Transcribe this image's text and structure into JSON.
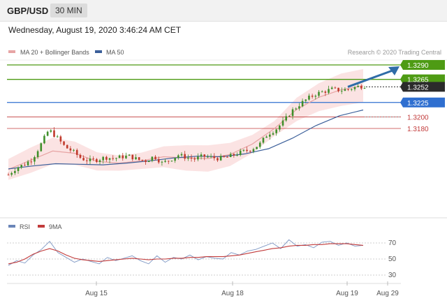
{
  "header": {
    "pair": "GBP/USD",
    "timeframe": "30 MIN"
  },
  "datetime": "Wednesday, August 19, 2020 3:46:24 AM CET",
  "legend": {
    "ma20": "MA 20 + Bollinger Bands",
    "ma50": "MA 50",
    "credit": "Research © 2020 Trading Central",
    "rsi": "RSI",
    "ma9": "9MA"
  },
  "colors": {
    "green": "#4e9b14",
    "blue": "#2f6fd0",
    "red": "#c23b3b",
    "dark": "#2b2b2b",
    "band": "#f9d9d9",
    "ma20": "#e7a4a4",
    "ma50": "#3b5f9a",
    "arrow": "#2f6ca8"
  },
  "chart_data": [
    {
      "type": "line",
      "title": "",
      "xlabel": "",
      "ylabel": "",
      "x_ticks": [
        "Aug 15",
        "Aug 18",
        "Aug 19",
        "Aug 29"
      ],
      "ylim": [
        1.308,
        1.331
      ],
      "series": [
        {
          "name": "MA 20 + Bollinger Bands",
          "values": [
            1.3109,
            1.3125,
            1.3141,
            1.3137,
            1.3123,
            1.312,
            1.3124,
            1.3131,
            1.3129,
            1.3128,
            1.3135,
            1.3153,
            1.318,
            1.3213,
            1.3234,
            1.3247,
            1.3254
          ]
        },
        {
          "name": "MA 50",
          "values": [
            1.311,
            1.3115,
            1.3119,
            1.3118,
            1.3117,
            1.312,
            1.3124,
            1.3129,
            1.3132,
            1.3131,
            1.3136,
            1.3145,
            1.3163,
            1.3185,
            1.3202,
            1.3212
          ]
        }
      ],
      "levels": [
        {
          "label": "1.3290",
          "value": 1.329,
          "color": "green"
        },
        {
          "label": "1.3265",
          "value": 1.3265,
          "color": "green"
        },
        {
          "label": "1.3252",
          "value": 1.3252,
          "color": "dark"
        },
        {
          "label": "1.3225",
          "value": 1.3225,
          "color": "blue"
        },
        {
          "label": "1.3200",
          "value": 1.32,
          "color": "red"
        },
        {
          "label": "1.3180",
          "value": 1.318,
          "color": "red"
        }
      ],
      "price": [
        1.31,
        1.3112,
        1.3118,
        1.3128,
        1.3152,
        1.3178,
        1.3164,
        1.3148,
        1.314,
        1.3128,
        1.3124,
        1.3126,
        1.313,
        1.3128,
        1.3131,
        1.3132,
        1.3126,
        1.3124,
        1.3132,
        1.312,
        1.3126,
        1.3134,
        1.313,
        1.3127,
        1.3132,
        1.313,
        1.3128,
        1.313,
        1.3135,
        1.314,
        1.3144,
        1.3152,
        1.317,
        1.3178,
        1.3192,
        1.321,
        1.3222,
        1.3232,
        1.324,
        1.3244,
        1.3248,
        1.3246,
        1.3248,
        1.3252,
        1.3254
      ]
    },
    {
      "type": "line",
      "y_ticks": [
        70,
        50,
        30
      ],
      "ylim": [
        20,
        80
      ],
      "series": [
        {
          "name": "RSI",
          "values": [
            42,
            48,
            45,
            55,
            62,
            72,
            58,
            52,
            46,
            50,
            47,
            44,
            52,
            48,
            51,
            54,
            48,
            44,
            54,
            46,
            52,
            50,
            55,
            49,
            53,
            51,
            50,
            58,
            55,
            60,
            62,
            66,
            70,
            63,
            74,
            66,
            68,
            64,
            71,
            72,
            67,
            70,
            66,
            67
          ]
        },
        {
          "name": "9MA",
          "values": [
            44,
            46,
            50,
            56,
            60,
            63,
            60,
            55,
            51,
            49,
            48,
            47,
            48,
            49,
            50,
            51,
            50,
            49,
            50,
            50,
            51,
            51,
            52,
            52,
            53,
            53,
            53,
            54,
            55,
            57,
            59,
            61,
            63,
            64,
            66,
            67,
            67,
            68,
            68,
            69,
            69,
            69,
            68,
            67
          ]
        }
      ]
    }
  ]
}
